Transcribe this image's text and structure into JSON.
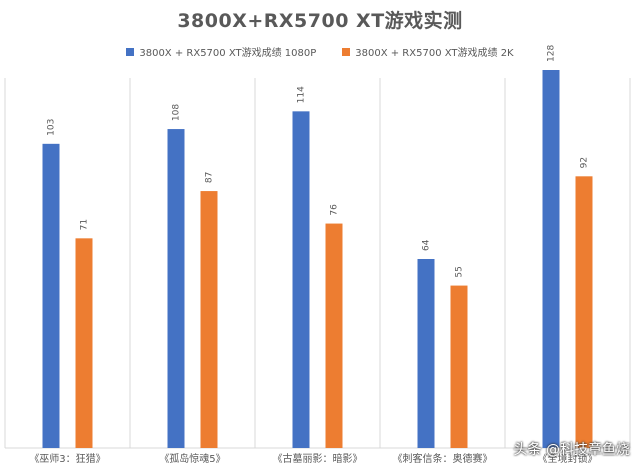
{
  "chart_data": {
    "type": "bar",
    "title": "3800X+RX5700 XT游戏实测",
    "categories": [
      "《巫师3：狂猎》",
      "《孤岛惊魂5》",
      "《古墓丽影：暗影》",
      "《刺客信条：奥德赛》",
      "《全境封锁》"
    ],
    "series": [
      {
        "name": "3800X + RX5700 XT游戏成绩 1080P",
        "color": "#4472c4",
        "values": [
          103,
          108,
          114,
          64,
          128
        ]
      },
      {
        "name": "3800X + RX5700 XT游戏成绩 2K",
        "color": "#ed7d31",
        "values": [
          71,
          87,
          76,
          55,
          92
        ]
      }
    ],
    "ylim": [
      0,
      140
    ],
    "grid": false,
    "legend_position": "top"
  },
  "watermark": "头条 @科技章鱼烧"
}
